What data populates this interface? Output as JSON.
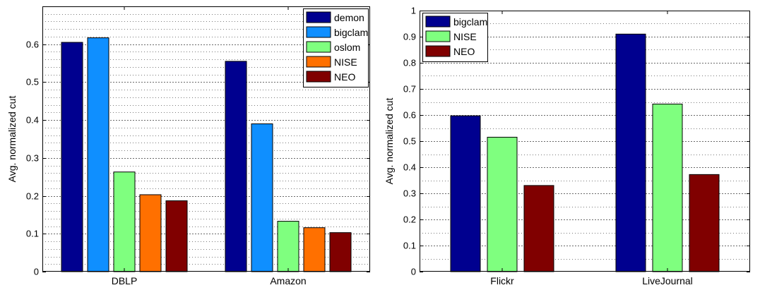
{
  "chart_data": [
    {
      "type": "bar",
      "categories": [
        "DBLP",
        "Amazon"
      ],
      "ylabel": "Avg. normalized cut",
      "ylim": [
        0,
        0.7
      ],
      "yticks": [
        0,
        0.1,
        0.2,
        0.3,
        0.4,
        0.5,
        0.6
      ],
      "minor_grid_step": 0.02,
      "grid": true,
      "legend_position": "top-right",
      "series": [
        {
          "name": "demon",
          "color": "#00008f",
          "values": [
            0.605,
            0.555
          ]
        },
        {
          "name": "bigclam",
          "color": "#0f8fff",
          "values": [
            0.617,
            0.39
          ]
        },
        {
          "name": "oslom",
          "color": "#7fff7f",
          "values": [
            0.263,
            0.133
          ]
        },
        {
          "name": "NISE",
          "color": "#ff7000",
          "values": [
            0.203,
            0.116
          ]
        },
        {
          "name": "NEO",
          "color": "#800000",
          "values": [
            0.187,
            0.103
          ]
        }
      ]
    },
    {
      "type": "bar",
      "categories": [
        "Flickr",
        "LiveJournal"
      ],
      "ylabel": "Avg. normalized cut",
      "ylim": [
        0,
        1.0
      ],
      "yticks": [
        0,
        0.1,
        0.2,
        0.3,
        0.4,
        0.5,
        0.6,
        0.7,
        0.8,
        0.9,
        1
      ],
      "minor_grid_step": 0.05,
      "grid": true,
      "legend_position": "top-left",
      "series": [
        {
          "name": "bigclam",
          "color": "#00008f",
          "values": [
            0.597,
            0.91
          ]
        },
        {
          "name": "NISE",
          "color": "#7fff7f",
          "values": [
            0.515,
            0.642
          ]
        },
        {
          "name": "NEO",
          "color": "#800000",
          "values": [
            0.33,
            0.372
          ]
        }
      ]
    }
  ]
}
